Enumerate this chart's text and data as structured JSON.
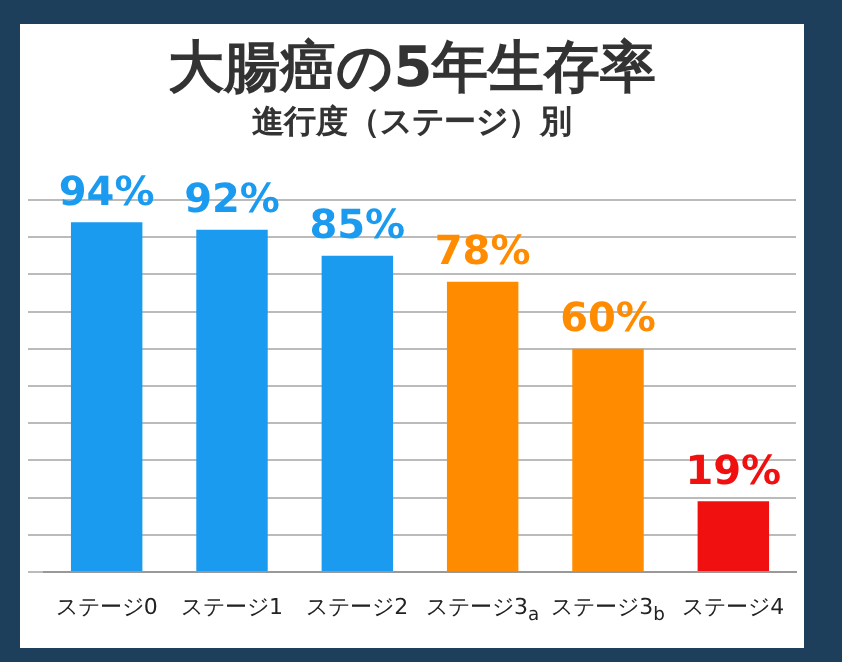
{
  "chart_data": {
    "type": "bar",
    "title": "大腸癌の5年生存率",
    "subtitle": "進行度（ステージ）別",
    "categories": [
      "ステージ0",
      "ステージ1",
      "ステージ2",
      "ステージ3$_{a}$",
      "ステージ3$_{b}$",
      "ステージ4"
    ],
    "values": [
      94,
      92,
      85,
      78,
      60,
      19
    ],
    "colors": [
      "#1a9bf0",
      "#1a9bf0",
      "#1a9bf0",
      "#ff8c00",
      "#ff8c00",
      "#f01010"
    ],
    "value_labels": [
      "94%",
      "92%",
      "85%",
      "78%",
      "60%",
      "19%"
    ],
    "grid": "y",
    "legend": false
  }
}
